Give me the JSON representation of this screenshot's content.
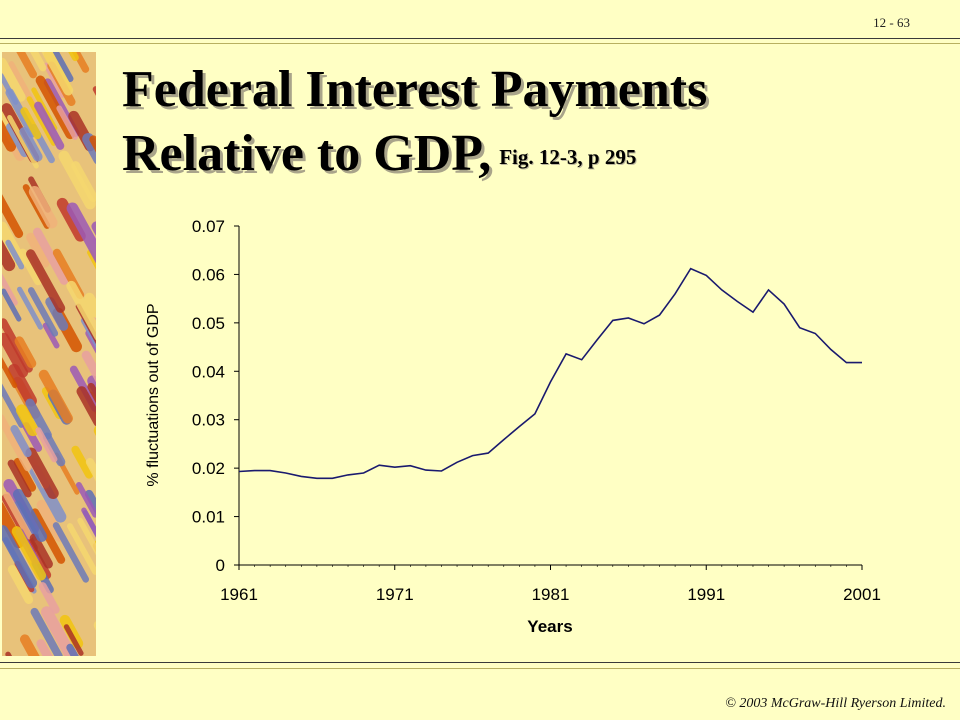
{
  "slide": {
    "number": "12 - 63",
    "title_line1": "Federal Interest Payments",
    "title_line2": "Relative to GDP,",
    "figure_ref": "Fig. 12-3, p 295",
    "footer": "© 2003 McGraw-Hill Ryerson Limited."
  },
  "colors": {
    "background": "#ffffc4",
    "line": "#1a1a6e"
  },
  "chart_data": {
    "type": "line",
    "xlabel": "Years",
    "ylabel": "% fluctuations out of GDP",
    "xlim": [
      1961,
      2001
    ],
    "ylim": [
      0,
      0.07
    ],
    "xticks": [
      "1961",
      "1971",
      "1981",
      "1991",
      "2001"
    ],
    "yticks": [
      "0",
      "0.01",
      "0.02",
      "0.03",
      "0.04",
      "0.05",
      "0.06",
      "0.07"
    ],
    "grid": false,
    "legend": "none",
    "series": [
      {
        "x": [
          1961,
          1962,
          1963,
          1964,
          1965,
          1966,
          1967,
          1968,
          1969,
          1970,
          1971,
          1972,
          1973,
          1974,
          1975,
          1976,
          1977,
          1978,
          1979,
          1980,
          1981,
          1982,
          1983,
          1984,
          1985,
          1986,
          1987,
          1988,
          1989,
          1990,
          1991,
          1992,
          1993,
          1994,
          1995,
          1996,
          1997,
          1998,
          1999,
          2000,
          2001
        ],
        "values": [
          0.0193,
          0.0195,
          0.0195,
          0.019,
          0.0183,
          0.0179,
          0.0179,
          0.0186,
          0.019,
          0.0206,
          0.0202,
          0.0205,
          0.0196,
          0.0194,
          0.0212,
          0.0226,
          0.0231,
          0.0259,
          0.0286,
          0.0312,
          0.0378,
          0.0436,
          0.0424,
          0.0465,
          0.0505,
          0.051,
          0.0498,
          0.0516,
          0.056,
          0.0612,
          0.0598,
          0.0568,
          0.0544,
          0.0522,
          0.0568,
          0.0539,
          0.049,
          0.0478,
          0.0445,
          0.0418,
          0.0418
        ]
      }
    ]
  }
}
